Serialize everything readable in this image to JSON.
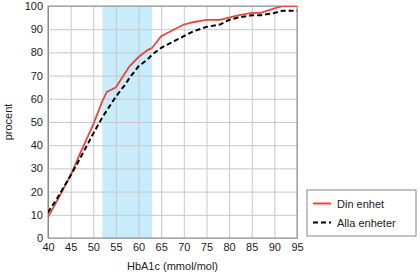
{
  "chart_data": {
    "type": "line",
    "x_label": "HbA1c (mmol/mol)",
    "y_label": "procent",
    "x": [
      40,
      42,
      45,
      47,
      50,
      52,
      53,
      55,
      57,
      58,
      60,
      62,
      63,
      65,
      67,
      70,
      72,
      75,
      78,
      80,
      82,
      85,
      87,
      90,
      92,
      95
    ],
    "series": [
      {
        "name": "Din enhet",
        "color": "#e8473f",
        "line_style": "solid",
        "values": [
          9,
          16,
          27,
          36,
          49,
          59,
          63,
          65,
          71,
          74,
          78,
          81,
          82,
          87,
          89,
          92,
          93,
          94,
          94,
          95,
          96,
          97,
          97,
          99,
          100,
          100
        ]
      },
      {
        "name": "Alla enheter",
        "color": "#000000",
        "line_style": "dashed",
        "values": [
          11,
          17,
          27,
          34,
          45,
          52,
          55,
          61,
          66,
          69,
          74,
          77,
          79,
          82,
          84,
          87,
          89,
          91,
          92,
          94,
          95,
          96,
          96,
          97,
          98,
          98
        ]
      }
    ],
    "highlight_range": [
      52,
      63
    ],
    "xlim": [
      40,
      95
    ],
    "xticks": [
      40,
      45,
      50,
      55,
      60,
      65,
      70,
      75,
      80,
      85,
      90,
      95
    ],
    "ylim": [
      0,
      100
    ],
    "yticks": [
      0,
      10,
      20,
      30,
      40,
      50,
      60,
      70,
      80,
      90,
      100
    ],
    "grid": true,
    "legend": "right"
  }
}
